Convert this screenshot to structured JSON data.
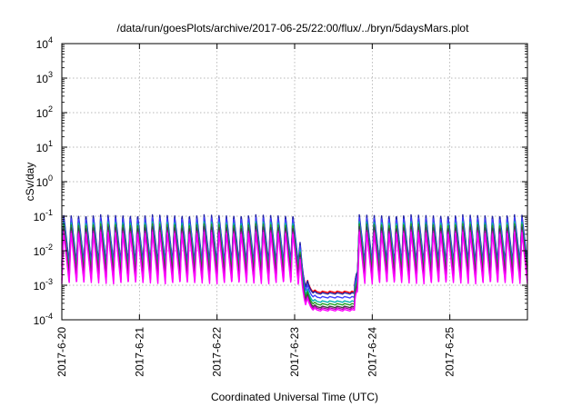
{
  "chart_data": {
    "type": "line",
    "title": "/data/run/goesPlots/archive/2017-06-25/22:00/flux/../bryn/5daysMars.plot",
    "xlabel": "Coordinated Universal Time (UTC)",
    "ylabel": "cSv/day",
    "yscale": "log",
    "ylim": [
      0.0001,
      10000
    ],
    "xlim": [
      "2017-6-20",
      "2017-6-26"
    ],
    "x_ticks": [
      "2017-6-20",
      "2017-6-21",
      "2017-6-22",
      "2017-6-23",
      "2017-6-24",
      "2017-6-25"
    ],
    "y_ticks": [
      {
        "base": "10",
        "exp": "-4",
        "value": 0.0001
      },
      {
        "base": "10",
        "exp": "-3",
        "value": 0.001
      },
      {
        "base": "10",
        "exp": "-2",
        "value": 0.01
      },
      {
        "base": "10",
        "exp": "-1",
        "value": 0.1
      },
      {
        "base": "10",
        "exp": "0",
        "value": 1
      },
      {
        "base": "10",
        "exp": "1",
        "value": 10
      },
      {
        "base": "10",
        "exp": "2",
        "value": 100
      },
      {
        "base": "10",
        "exp": "3",
        "value": 1000
      },
      {
        "base": "10",
        "exp": "4",
        "value": 10000
      }
    ],
    "grid": true,
    "legend": "none",
    "pattern": {
      "oscillations_per_day": 10.5,
      "quiet_interval": [
        "2017-6-23 01:00",
        "2017-6-23 18:30"
      ]
    },
    "series": [
      {
        "color": "#ff0000",
        "peak": 0.085,
        "trough": 0.0035,
        "quiet_level": 0.00058
      },
      {
        "color": "#2020a0",
        "peak": 0.11,
        "trough": 0.0045,
        "quiet_level": 0.00052
      },
      {
        "color": "#3f3fff",
        "peak": 0.09,
        "trough": 0.0038,
        "quiet_level": 0.0004
      },
      {
        "color": "#00b0b0",
        "peak": 0.07,
        "trough": 0.003,
        "quiet_level": 0.0003
      },
      {
        "color": "#20a020",
        "peak": 0.06,
        "trough": 0.0025,
        "quiet_level": 0.00025
      },
      {
        "color": "#404040",
        "peak": 0.05,
        "trough": 0.002,
        "quiet_level": 0.00021
      },
      {
        "color": "#b000b0",
        "peak": 0.04,
        "trough": 0.0014,
        "quiet_level": 0.00019
      },
      {
        "color": "#ff00ff",
        "peak": 0.035,
        "trough": 0.0011,
        "quiet_level": 0.00017
      }
    ]
  }
}
